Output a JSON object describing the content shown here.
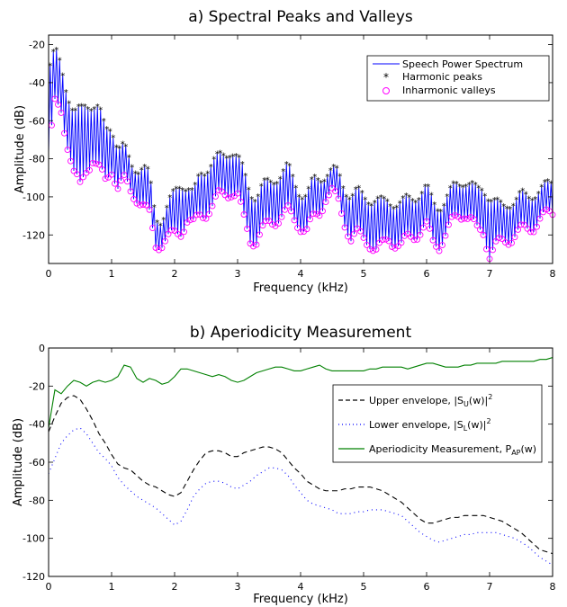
{
  "chart_data": [
    {
      "type": "line",
      "title": "a) Spectral Peaks and Valleys",
      "xlabel": "Frequency (kHz)",
      "ylabel": "Amplitude (dB)",
      "xlim": [
        0,
        8
      ],
      "ylim": [
        -135,
        -15
      ],
      "xticks": [
        "0",
        "1",
        "2",
        "3",
        "4",
        "5",
        "6",
        "7",
        "8"
      ],
      "yticks": [
        "-20",
        "-40",
        "-60",
        "-80",
        "-100",
        "-120"
      ],
      "legend_position": "top-right",
      "grid": false,
      "envelope_peaks": {
        "x": [
          0,
          0.1,
          0.2,
          0.3,
          0.4,
          0.5,
          0.6,
          0.7,
          0.8,
          0.9,
          1.0,
          1.1,
          1.2,
          1.3,
          1.4,
          1.5,
          1.6,
          1.7,
          1.8,
          1.9,
          2.0,
          2.1,
          2.2,
          2.3,
          2.4,
          2.5,
          2.6,
          2.7,
          2.8,
          2.9,
          3.0,
          3.1,
          3.2,
          3.3,
          3.4,
          3.5,
          3.6,
          3.7,
          3.8,
          3.9,
          4.0,
          4.1,
          4.2,
          4.3,
          4.4,
          4.5,
          4.6,
          4.7,
          4.8,
          4.9,
          5.0,
          5.1,
          5.2,
          5.3,
          5.4,
          5.5,
          5.6,
          5.7,
          5.8,
          5.9,
          6.0,
          6.1,
          6.2,
          6.3,
          6.4,
          6.5,
          6.6,
          6.7,
          6.8,
          6.9,
          7.0,
          7.1,
          7.2,
          7.3,
          7.4,
          7.5,
          7.6,
          7.7,
          7.8,
          7.9,
          8.0
        ],
        "y": [
          -35,
          -24,
          -30,
          -45,
          -58,
          -55,
          -50,
          -52,
          -55,
          -65,
          -62,
          -75,
          -75,
          -82,
          -85,
          -85,
          -90,
          -110,
          -112,
          -105,
          -98,
          -92,
          -95,
          -100,
          -88,
          -85,
          -82,
          -80,
          -78,
          -75,
          -80,
          -88,
          -97,
          -100,
          -95,
          -93,
          -90,
          -88,
          -85,
          -92,
          -98,
          -100,
          -92,
          -90,
          -88,
          -87,
          -88,
          -95,
          -100,
          -98,
          -100,
          -101,
          -102,
          -104,
          -102,
          -103,
          -104,
          -102,
          -100,
          -98,
          -96,
          -103,
          -105,
          -102,
          -97,
          -93,
          -91,
          -94,
          -98,
          -95,
          -100,
          -104,
          -106,
          -103,
          -102,
          -100,
          -100,
          -98,
          -97,
          -95,
          -92
        ]
      },
      "envelope_valleys": {
        "x": [
          0,
          0.1,
          0.2,
          0.3,
          0.4,
          0.5,
          0.6,
          0.7,
          0.8,
          0.9,
          1.0,
          1.1,
          1.2,
          1.3,
          1.4,
          1.5,
          1.6,
          1.7,
          1.8,
          1.9,
          2.0,
          2.1,
          2.2,
          2.3,
          2.4,
          2.5,
          2.6,
          2.7,
          2.8,
          2.9,
          3.0,
          3.1,
          3.2,
          3.3,
          3.4,
          3.5,
          3.6,
          3.7,
          3.8,
          3.9,
          4.0,
          4.1,
          4.2,
          4.3,
          4.4,
          4.5,
          4.6,
          4.7,
          4.8,
          4.9,
          5.0,
          5.1,
          5.2,
          5.3,
          5.4,
          5.5,
          5.6,
          5.7,
          5.8,
          5.9,
          6.0,
          6.1,
          6.2,
          6.3,
          6.4,
          6.5,
          6.6,
          6.7,
          6.8,
          6.9,
          7.0,
          7.1,
          7.2,
          7.3,
          7.4,
          7.5,
          7.6,
          7.7,
          7.8,
          7.9,
          8.0
        ],
        "y": [
          -78,
          -52,
          -55,
          -72,
          -88,
          -95,
          -85,
          -80,
          -86,
          -92,
          -85,
          -95,
          -92,
          -97,
          -100,
          -105,
          -110,
          -125,
          -124,
          -122,
          -120,
          -118,
          -112,
          -115,
          -110,
          -108,
          -105,
          -100,
          -98,
          -97,
          -100,
          -112,
          -122,
          -123,
          -118,
          -114,
          -112,
          -110,
          -108,
          -112,
          -115,
          -118,
          -112,
          -108,
          -100,
          -98,
          -103,
          -113,
          -122,
          -120,
          -122,
          -124,
          -128,
          -126,
          -122,
          -124,
          -126,
          -122,
          -120,
          -118,
          -116,
          -124,
          -125,
          -120,
          -114,
          -110,
          -108,
          -112,
          -118,
          -118,
          -130,
          -126,
          -124,
          -122,
          -120,
          -118,
          -117,
          -115,
          -112,
          -110,
          -108
        ]
      },
      "series": [
        {
          "name": "Speech Power Spectrum",
          "color": "#0000ff",
          "style": "solid line"
        },
        {
          "name": "Harmonic peaks",
          "color": "#000000",
          "marker": "asterisk"
        },
        {
          "name": "Inharmonic valleys",
          "color": "#ff00ff",
          "marker": "open circle"
        }
      ],
      "harmonic_spacing_khz": 0.05
    },
    {
      "type": "line",
      "title": "b) Aperiodicity Measurement",
      "xlabel": "Frequency (kHz)",
      "ylabel": "Amplitude (dB)",
      "xlim": [
        0,
        8
      ],
      "ylim": [
        -120,
        0
      ],
      "xticks": [
        "0",
        "1",
        "2",
        "3",
        "4",
        "5",
        "6",
        "7",
        "8"
      ],
      "yticks": [
        "0",
        "-20",
        "-40",
        "-60",
        "-80",
        "-100",
        "-120"
      ],
      "legend_position": "right",
      "grid": false,
      "x": [
        0,
        0.1,
        0.2,
        0.3,
        0.4,
        0.5,
        0.6,
        0.7,
        0.8,
        0.9,
        1.0,
        1.1,
        1.2,
        1.3,
        1.4,
        1.5,
        1.6,
        1.7,
        1.8,
        1.9,
        2.0,
        2.1,
        2.2,
        2.3,
        2.4,
        2.5,
        2.6,
        2.7,
        2.8,
        2.9,
        3.0,
        3.1,
        3.2,
        3.3,
        3.4,
        3.5,
        3.6,
        3.7,
        3.8,
        3.9,
        4.0,
        4.1,
        4.2,
        4.3,
        4.4,
        4.5,
        4.6,
        4.7,
        4.8,
        4.9,
        5.0,
        5.1,
        5.2,
        5.3,
        5.4,
        5.5,
        5.6,
        5.7,
        5.8,
        5.9,
        6.0,
        6.1,
        6.2,
        6.3,
        6.4,
        6.5,
        6.6,
        6.7,
        6.8,
        6.9,
        7.0,
        7.1,
        7.2,
        7.3,
        7.4,
        7.5,
        7.6,
        7.7,
        7.8,
        7.9,
        8.0
      ],
      "series": [
        {
          "name": "Upper envelope, |S_U(w)|^2",
          "color": "#000000",
          "style": "dashed",
          "values": [
            -44,
            -36,
            -29,
            -26,
            -25,
            -27,
            -32,
            -38,
            -45,
            -50,
            -56,
            -61,
            -63,
            -64,
            -67,
            -70,
            -72,
            -73,
            -75,
            -77,
            -78,
            -76,
            -70,
            -64,
            -59,
            -55,
            -54,
            -54,
            -55,
            -57,
            -57,
            -55,
            -54,
            -53,
            -52,
            -52,
            -53,
            -55,
            -59,
            -63,
            -66,
            -70,
            -72,
            -74,
            -75,
            -75,
            -75,
            -74,
            -74,
            -73,
            -73,
            -73,
            -74,
            -75,
            -77,
            -79,
            -81,
            -84,
            -87,
            -90,
            -92,
            -92,
            -91,
            -90,
            -89,
            -89,
            -88,
            -88,
            -88,
            -88,
            -89,
            -90,
            -91,
            -93,
            -95,
            -97,
            -100,
            -103,
            -106,
            -107,
            -108
          ]
        },
        {
          "name": "Lower envelope, |S_L(w)|^2",
          "color": "#0000ff",
          "style": "dotted",
          "values": [
            -66,
            -58,
            -50,
            -46,
            -43,
            -42,
            -45,
            -50,
            -55,
            -58,
            -62,
            -68,
            -72,
            -75,
            -78,
            -80,
            -82,
            -84,
            -87,
            -90,
            -93,
            -91,
            -85,
            -78,
            -74,
            -71,
            -70,
            -70,
            -71,
            -73,
            -74,
            -72,
            -70,
            -67,
            -65,
            -63,
            -63,
            -64,
            -67,
            -72,
            -76,
            -80,
            -82,
            -83,
            -84,
            -85,
            -87,
            -87,
            -87,
            -86,
            -86,
            -85,
            -85,
            -85,
            -86,
            -87,
            -88,
            -91,
            -94,
            -97,
            -99,
            -101,
            -102,
            -101,
            -100,
            -99,
            -98,
            -98,
            -97,
            -97,
            -97,
            -97,
            -98,
            -99,
            -100,
            -102,
            -104,
            -107,
            -110,
            -112,
            -114
          ]
        },
        {
          "name": "Aperiodicity Measurement, P_AP(w)",
          "color": "#008000",
          "style": "solid",
          "values": [
            -42,
            -22,
            -24,
            -20,
            -17,
            -18,
            -20,
            -18,
            -17,
            -18,
            -17,
            -15,
            -9,
            -10,
            -16,
            -18,
            -16,
            -17,
            -19,
            -18,
            -15,
            -11,
            -11,
            -12,
            -13,
            -14,
            -15,
            -14,
            -15,
            -17,
            -18,
            -17,
            -15,
            -13,
            -12,
            -11,
            -10,
            -10,
            -11,
            -12,
            -12,
            -11,
            -10,
            -9,
            -11,
            -12,
            -12,
            -12,
            -12,
            -12,
            -12,
            -11,
            -11,
            -10,
            -10,
            -10,
            -10,
            -11,
            -10,
            -9,
            -8,
            -8,
            -9,
            -10,
            -10,
            -10,
            -9,
            -9,
            -8,
            -8,
            -8,
            -8,
            -7,
            -7,
            -7,
            -7,
            -7,
            -7,
            -6,
            -6,
            -5
          ]
        }
      ]
    }
  ],
  "legend_a": {
    "label_1": "Speech Power Spectrum",
    "label_2": "Harmonic peaks",
    "label_3": "Inharmonic valleys"
  },
  "legend_b": {
    "label_1": "Upper envelope, |S",
    "sub_1": "U",
    "tail_1": "(w)|",
    "sup_1": "2",
    "label_2": "Lower envelope, |S",
    "sub_2": "L",
    "tail_2": "(w)|",
    "sup_2": "2",
    "label_3": "Aperiodicity Measurement, P",
    "sub_3": "AP",
    "tail_3": "(w)"
  },
  "colors": {
    "spectrum": "#0000ff",
    "peaks": "#000000",
    "valleys": "#ff00ff",
    "upper": "#000000",
    "lower": "#0000ff",
    "aperiodicity": "#008000"
  }
}
